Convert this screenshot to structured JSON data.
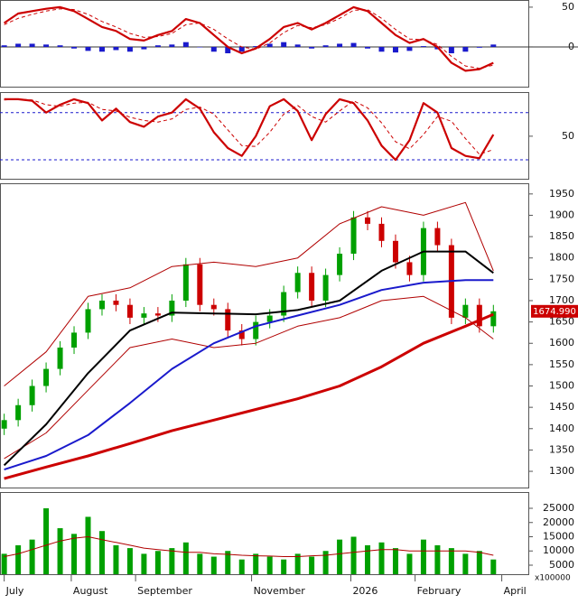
{
  "chart_data": [
    {
      "type": "line",
      "xlim": [
        -0.3,
        37.5
      ],
      "ylim": [
        -50,
        59
      ],
      "yticks": [
        0,
        50
      ],
      "zero_line": 0,
      "x": [
        0,
        1,
        2,
        3,
        4,
        5,
        6,
        7,
        8,
        9,
        10,
        11,
        12,
        13,
        14,
        15,
        16,
        17,
        18,
        19,
        20,
        21,
        22,
        23,
        24,
        25,
        26,
        27,
        28,
        29,
        30,
        31,
        32,
        33,
        34,
        35
      ],
      "series": [
        {
          "type": "bar",
          "color": "#1a1acc",
          "values": [
            2,
            4,
            4,
            3,
            2,
            -2,
            -5,
            -6,
            -4,
            -6,
            -3,
            2,
            3,
            6,
            0,
            -6,
            -8,
            -6,
            1,
            4,
            6,
            3,
            -2,
            2,
            4,
            5,
            -2,
            -6,
            -7,
            -5,
            1,
            -3,
            -8,
            -6,
            -1,
            3
          ]
        },
        {
          "type": "line",
          "color": "#cc0000",
          "width": 1,
          "dash": true,
          "values": [
            28,
            36,
            41,
            45,
            48,
            47,
            41,
            32,
            25,
            17,
            12,
            13,
            17,
            28,
            30,
            22,
            10,
            0,
            -3,
            5,
            18,
            27,
            24,
            28,
            36,
            46,
            47,
            36,
            22,
            10,
            9,
            3,
            -12,
            -24,
            -27,
            -23
          ]
        },
        {
          "type": "line",
          "color": "#cc0000",
          "width": 2.2,
          "dash": false,
          "values": [
            30,
            42,
            45,
            48,
            50,
            45,
            35,
            25,
            20,
            10,
            8,
            15,
            20,
            35,
            30,
            15,
            0,
            -8,
            -2,
            10,
            25,
            30,
            22,
            30,
            40,
            50,
            45,
            30,
            15,
            5,
            10,
            0,
            -20,
            -30,
            -28,
            -20
          ]
        }
      ]
    },
    {
      "type": "line",
      "xlim": [
        -0.3,
        37.5
      ],
      "ylim": [
        -4,
        106
      ],
      "yticks": [
        50
      ],
      "hlines": [
        20,
        80
      ],
      "x": [
        0,
        1,
        2,
        3,
        4,
        5,
        6,
        7,
        8,
        9,
        10,
        11,
        12,
        13,
        14,
        15,
        16,
        17,
        18,
        19,
        20,
        21,
        22,
        23,
        24,
        25,
        26,
        27,
        28,
        29,
        30,
        31,
        32,
        33,
        34,
        35
      ],
      "series": [
        {
          "type": "line",
          "color": "#cc0000",
          "width": 1,
          "dash": true,
          "values": [
            96,
            97,
            96,
            90,
            88,
            92,
            93,
            84,
            82,
            74,
            70,
            68,
            72,
            84,
            87,
            78,
            58,
            38,
            37,
            55,
            78,
            89,
            75,
            68,
            82,
            95,
            86,
            67,
            43,
            34,
            52,
            75,
            69,
            47,
            27,
            33
          ]
        },
        {
          "type": "line",
          "color": "#cc0000",
          "width": 2.2,
          "dash": false,
          "values": [
            97,
            97,
            95,
            80,
            90,
            97,
            92,
            70,
            85,
            68,
            62,
            75,
            80,
            97,
            85,
            55,
            35,
            25,
            50,
            88,
            97,
            82,
            45,
            78,
            97,
            92,
            70,
            38,
            20,
            45,
            92,
            80,
            35,
            25,
            22,
            52
          ]
        }
      ]
    },
    {
      "type": "candlestick",
      "xlim": [
        -0.3,
        37.5
      ],
      "ylim": [
        1262,
        1975
      ],
      "yticks": [
        1300,
        1350,
        1400,
        1450,
        1500,
        1550,
        1600,
        1650,
        1700,
        1750,
        1800,
        1850,
        1900,
        1950
      ],
      "up_color": "#00a000",
      "down_color": "#cc0000",
      "x": [
        0,
        1,
        2,
        3,
        4,
        5,
        6,
        7,
        8,
        9,
        10,
        11,
        12,
        13,
        14,
        15,
        16,
        17,
        18,
        19,
        20,
        21,
        22,
        23,
        24,
        25,
        26,
        27,
        28,
        29,
        30,
        31,
        32,
        33,
        34,
        35
      ],
      "open": [
        1400,
        1420,
        1455,
        1500,
        1540,
        1590,
        1625,
        1680,
        1700,
        1690,
        1660,
        1670,
        1665,
        1700,
        1785,
        1690,
        1680,
        1630,
        1610,
        1650,
        1665,
        1720,
        1765,
        1700,
        1760,
        1810,
        1895,
        1880,
        1840,
        1790,
        1760,
        1870,
        1830,
        1660,
        1690,
        1640
      ],
      "high": [
        1435,
        1470,
        1515,
        1555,
        1605,
        1640,
        1695,
        1715,
        1715,
        1705,
        1685,
        1685,
        1715,
        1800,
        1800,
        1705,
        1695,
        1645,
        1665,
        1680,
        1735,
        1780,
        1780,
        1775,
        1825,
        1910,
        1910,
        1895,
        1855,
        1805,
        1885,
        1885,
        1845,
        1705,
        1705,
        1690
      ],
      "low": [
        1385,
        1405,
        1440,
        1485,
        1525,
        1575,
        1610,
        1665,
        1675,
        1645,
        1645,
        1650,
        1650,
        1685,
        1675,
        1665,
        1615,
        1595,
        1595,
        1635,
        1650,
        1705,
        1685,
        1685,
        1745,
        1795,
        1865,
        1825,
        1775,
        1745,
        1745,
        1815,
        1645,
        1645,
        1625,
        1625
      ],
      "close": [
        1420,
        1455,
        1500,
        1540,
        1590,
        1625,
        1680,
        1700,
        1690,
        1660,
        1670,
        1665,
        1700,
        1785,
        1690,
        1680,
        1630,
        1610,
        1650,
        1665,
        1720,
        1765,
        1700,
        1760,
        1810,
        1895,
        1880,
        1840,
        1790,
        1760,
        1870,
        1830,
        1660,
        1690,
        1640,
        1675
      ],
      "series": [
        {
          "type": "line",
          "color": "#b00000",
          "width": 1,
          "dash": false,
          "x": [
            0,
            3,
            6,
            9,
            12,
            15,
            18,
            21,
            24,
            27,
            30,
            33,
            35
          ],
          "values": [
            1500,
            1580,
            1710,
            1730,
            1780,
            1790,
            1780,
            1800,
            1880,
            1920,
            1900,
            1930,
            1770
          ]
        },
        {
          "type": "line",
          "color": "#b00000",
          "width": 1,
          "dash": false,
          "x": [
            0,
            3,
            6,
            9,
            12,
            15,
            18,
            21,
            24,
            27,
            30,
            33,
            35
          ],
          "values": [
            1330,
            1390,
            1490,
            1590,
            1610,
            1590,
            1600,
            1640,
            1660,
            1700,
            1710,
            1660,
            1610
          ]
        },
        {
          "type": "line",
          "color": "#cc0000",
          "width": 3,
          "dash": false,
          "x": [
            0,
            3,
            6,
            9,
            12,
            15,
            18,
            21,
            24,
            27,
            30,
            33,
            35
          ],
          "values": [
            1283,
            1310,
            1336,
            1365,
            1395,
            1420,
            1445,
            1470,
            1500,
            1545,
            1600,
            1640,
            1668
          ]
        },
        {
          "type": "line",
          "color": "#1a1acc",
          "width": 2,
          "dash": false,
          "x": [
            0,
            3,
            6,
            9,
            12,
            15,
            18,
            21,
            24,
            27,
            30,
            33,
            35
          ],
          "values": [
            1304,
            1336,
            1385,
            1460,
            1540,
            1600,
            1640,
            1665,
            1690,
            1725,
            1742,
            1748,
            1748
          ]
        },
        {
          "type": "line",
          "color": "#000000",
          "width": 2,
          "dash": false,
          "x": [
            0,
            3,
            6,
            9,
            12,
            15,
            18,
            21,
            24,
            27,
            30,
            33,
            35
          ],
          "values": [
            1314,
            1410,
            1530,
            1630,
            1672,
            1670,
            1668,
            1678,
            1700,
            1770,
            1815,
            1815,
            1765
          ]
        }
      ],
      "last_price": {
        "value": 1674.99,
        "label": "1674.990"
      },
      "last_price_color": "#cc0000"
    },
    {
      "type": "bar",
      "xlim": [
        -0.3,
        37.5
      ],
      "ylim": [
        1825,
        30715
      ],
      "yticks": [
        5000,
        10000,
        15000,
        20000,
        25000
      ],
      "unit_label": "x100000",
      "xticks": [
        {
          "value": 0,
          "label": "July"
        },
        {
          "value": 4.8,
          "label": "August"
        },
        {
          "value": 9.4,
          "label": "September"
        },
        {
          "value": 17.7,
          "label": "November"
        },
        {
          "value": 24.8,
          "label": "2026"
        },
        {
          "value": 29.4,
          "label": "February"
        },
        {
          "value": 35.6,
          "label": "April"
        }
      ],
      "x": [
        0,
        1,
        2,
        3,
        4,
        5,
        6,
        7,
        8,
        9,
        10,
        11,
        12,
        13,
        14,
        15,
        16,
        17,
        18,
        19,
        20,
        21,
        22,
        23,
        24,
        25,
        26,
        27,
        28,
        29,
        30,
        31,
        32,
        33,
        34,
        35
      ],
      "series": [
        {
          "type": "bar",
          "color": "#00a000",
          "values": [
            9000,
            12000,
            14000,
            25000,
            18000,
            16000,
            22000,
            17000,
            12000,
            11000,
            9000,
            10000,
            11000,
            13000,
            9000,
            8000,
            10000,
            7000,
            9000,
            8000,
            7000,
            9000,
            8000,
            10000,
            14000,
            15000,
            12000,
            13000,
            11000,
            9000,
            14000,
            12000,
            11000,
            9000,
            10000,
            7000
          ]
        },
        {
          "type": "line",
          "color": "#b00000",
          "width": 1,
          "dash": false,
          "values": [
            8000,
            9000,
            10500,
            12000,
            13500,
            14500,
            15000,
            14000,
            13000,
            12000,
            11000,
            10500,
            10000,
            9500,
            9500,
            9000,
            8800,
            8500,
            8300,
            8200,
            8000,
            8000,
            8300,
            8500,
            9000,
            9500,
            10000,
            10500,
            10500,
            10000,
            10000,
            10000,
            10000,
            10000,
            9500,
            8500
          ]
        }
      ]
    }
  ]
}
